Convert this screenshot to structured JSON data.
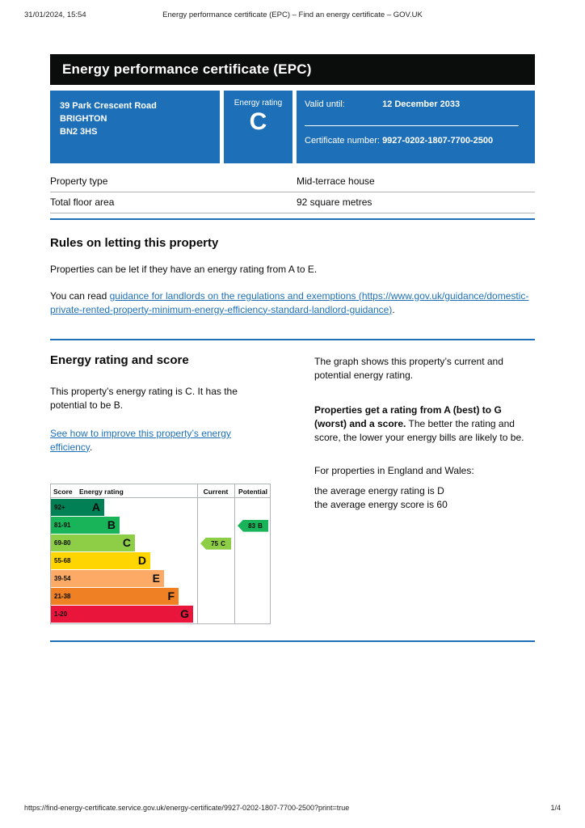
{
  "print_header": {
    "datetime": "31/01/2024, 15:54",
    "doc_title": "Energy performance certificate (EPC) – Find an energy certificate – GOV.UK"
  },
  "banner": {
    "title": "Energy performance certificate (EPC)"
  },
  "summary": {
    "address_lines": [
      "39 Park Crescent Road",
      "BRIGHTON",
      "BN2 3HS"
    ],
    "energy_rating_label": "Energy rating",
    "energy_rating": "C",
    "valid_until_label": "Valid until:",
    "valid_until_value": "12 December 2033",
    "certificate_number_label": "Certificate number:",
    "certificate_number_value": "9927-0202-1807-7700-2500"
  },
  "property_details": {
    "rows": [
      {
        "label": "Property type",
        "value": "Mid-terrace house"
      },
      {
        "label": "Total floor area",
        "value": "92 square metres"
      }
    ]
  },
  "rules": {
    "heading": "Rules on letting this property",
    "p1": "Properties can be let if they have an energy rating from A to E.",
    "p2_prefix": "You can read ",
    "p2_link_text": "guidance for landlords on the regulations and exemptions",
    "p2_link_url": "(https://www.gov.uk/guidance/domestic-private-rented-property-minimum-energy-efficiency-standard-landlord-guidance)",
    "p2_suffix": "."
  },
  "rating_section": {
    "heading": "Energy rating and score",
    "p1": "This property’s energy rating is C. It has the potential to be B.",
    "link_text": "See how to improve this property’s energy efficiency",
    "link_suffix": ".",
    "right_p1": "The graph shows this property’s current and potential energy rating.",
    "right_p2_bold": "Properties get a rating from A (best) to G (worst) and a score.",
    "right_p2_rest": "The better the rating and score, the lower your energy bills are likely to be.",
    "right_p3": "For properties in England and Wales:",
    "right_p4_line1": "the average energy rating is D",
    "right_p4_line2": "the average energy score is 60"
  },
  "chart_data": {
    "type": "bar",
    "orientation": "horizontal",
    "columns": [
      "Score",
      "Energy rating",
      "Current",
      "Potential"
    ],
    "bands": [
      {
        "score": "92+",
        "letter": "A",
        "color": "#008054"
      },
      {
        "score": "81-91",
        "letter": "B",
        "color": "#19b459"
      },
      {
        "score": "69-80",
        "letter": "C",
        "color": "#8dce46"
      },
      {
        "score": "55-68",
        "letter": "D",
        "color": "#ffd500"
      },
      {
        "score": "39-54",
        "letter": "E",
        "color": "#fcaa65"
      },
      {
        "score": "21-38",
        "letter": "F",
        "color": "#ef8023"
      },
      {
        "score": "1-20",
        "letter": "G",
        "color": "#e9153b"
      }
    ],
    "current": {
      "score": 75,
      "letter": "C",
      "color": "#8dce46"
    },
    "potential": {
      "score": 83,
      "letter": "B",
      "color": "#19b459"
    }
  },
  "footer": {
    "url": "https://find-energy-certificate.service.gov.uk/energy-certificate/9927-0202-1807-7700-2500?print=true",
    "page_indicator": "1/4"
  },
  "colors": {
    "govuk_blue": "#1d70b8",
    "banner_black": "#0b0c0c",
    "link_blue": "#1d70b8",
    "border_grey": "#b1b4b6"
  }
}
